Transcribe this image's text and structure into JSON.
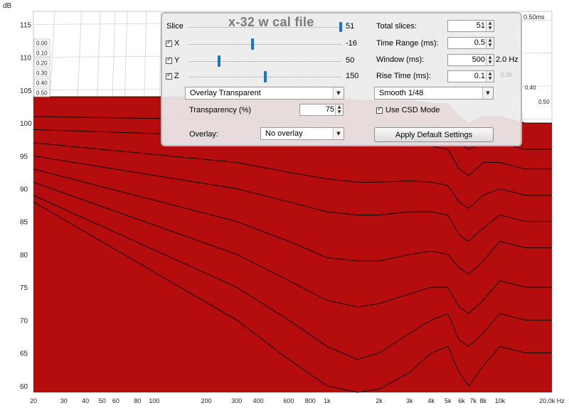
{
  "chart_data": {
    "type": "area",
    "title": "x-32 w cal file",
    "ylabel": "dB",
    "xlabel": "",
    "x_scale": "log",
    "xlim": [
      20,
      20000
    ],
    "ylim": [
      59,
      117
    ],
    "y_ticks": [
      60,
      65,
      70,
      75,
      80,
      85,
      90,
      95,
      100,
      105,
      110,
      115
    ],
    "x_ticks": [
      20,
      30,
      40,
      50,
      60,
      80,
      100,
      200,
      300,
      400,
      600,
      800,
      1000,
      2000,
      3000,
      4000,
      5000,
      6000,
      7000,
      8000,
      10000,
      20000
    ],
    "x_tick_labels": [
      "20",
      "30",
      "40",
      "50",
      "60",
      "80",
      "100",
      "200",
      "300",
      "400",
      "600",
      "800",
      "1k",
      "2k",
      "3k",
      "4k",
      "5k",
      "6k",
      "7k",
      "8k",
      "10k",
      "20.0k Hz"
    ],
    "time_scale_labels": [
      "0.00",
      "0.10",
      "0.20",
      "0.30",
      "0.40",
      "0.50"
    ],
    "depth_labels_right": [
      "0.50ms",
      "0.40",
      "0.50"
    ],
    "fill_color": "#b50d0d",
    "line_color": "#000000",
    "series": [
      {
        "x": [
          20,
          300,
          600,
          1000,
          1500,
          2000,
          3000,
          4000,
          5000,
          5800,
          6600,
          8000,
          10000,
          14000,
          20000
        ],
        "y": [
          104,
          104,
          104,
          104,
          103.5,
          103.5,
          103.5,
          103,
          103,
          101,
          100,
          101,
          101,
          100,
          100
        ]
      },
      {
        "x": [
          20,
          300,
          600,
          1000,
          1500,
          2000,
          3000,
          4000,
          5000,
          5800,
          6600,
          8000,
          10000,
          14000,
          20000
        ],
        "y": [
          101,
          100.5,
          100.5,
          100,
          99.8,
          99.5,
          99.8,
          99.5,
          99,
          97,
          96,
          97,
          97,
          96,
          96
        ]
      },
      {
        "x": [
          20,
          300,
          600,
          1000,
          1500,
          2000,
          3000,
          4000,
          5000,
          5800,
          6600,
          8000,
          10000,
          14000,
          20000
        ],
        "y": [
          99,
          98,
          97.5,
          97,
          96.8,
          96.5,
          96.8,
          96.5,
          96,
          93,
          92,
          94,
          94,
          93,
          93
        ]
      },
      {
        "x": [
          20,
          300,
          600,
          1000,
          1500,
          2000,
          3000,
          4000,
          5000,
          5800,
          6600,
          8000,
          10000,
          14000,
          20000
        ],
        "y": [
          97,
          94,
          92.5,
          91.5,
          91,
          91,
          91.2,
          91,
          90.5,
          88,
          87,
          89,
          90,
          89,
          89
        ]
      },
      {
        "x": [
          20,
          300,
          600,
          1000,
          1500,
          2000,
          3000,
          4000,
          5000,
          5800,
          6600,
          8000,
          10000,
          14000,
          20000
        ],
        "y": [
          95,
          90,
          88,
          86.5,
          86,
          86,
          86.5,
          86.5,
          86,
          83,
          82,
          84,
          86,
          85,
          85
        ]
      },
      {
        "x": [
          20,
          300,
          600,
          1000,
          1500,
          2000,
          3000,
          4000,
          5000,
          5800,
          6600,
          8000,
          10000,
          14000,
          20000
        ],
        "y": [
          93,
          85,
          82,
          79.5,
          79,
          79,
          80,
          80.5,
          80,
          78,
          77,
          79,
          82,
          81,
          81
        ]
      },
      {
        "x": [
          20,
          300,
          600,
          1000,
          1500,
          2000,
          3000,
          4000,
          5000,
          5800,
          6600,
          8000,
          10000,
          14000,
          20000
        ],
        "y": [
          91,
          80,
          76,
          73,
          72,
          72.5,
          74,
          75,
          75,
          72,
          71,
          73,
          76,
          75,
          75
        ]
      },
      {
        "x": [
          20,
          300,
          600,
          1000,
          1500,
          2000,
          3000,
          4000,
          5000,
          5800,
          6600,
          8000,
          10000,
          14000,
          20000
        ],
        "y": [
          89,
          75,
          70,
          66,
          64,
          65,
          68,
          70,
          71,
          67,
          66,
          68,
          71,
          70,
          70
        ]
      },
      {
        "x": [
          20,
          300,
          600,
          1000,
          1500,
          2000,
          3000,
          4000,
          5000,
          5800,
          6600,
          8000,
          10000,
          14000,
          20000
        ],
        "y": [
          88,
          70,
          64,
          60,
          59,
          59.5,
          62,
          65,
          66,
          62,
          60,
          63,
          66,
          65,
          65
        ]
      }
    ]
  },
  "controls": {
    "title": "x-32 w cal file",
    "slice_label": "Slice",
    "slice_value": "51",
    "x_label": "X",
    "x_value": "-16",
    "y_label": "Y",
    "y_value": "50",
    "z_label": "Z",
    "z_value": "150",
    "total_slices_label": "Total slices:",
    "total_slices_value": "51",
    "time_range_label": "Time Range (ms):",
    "time_range_value": "0.5",
    "window_label": "Window (ms):",
    "window_value": "500",
    "window_hz": "2.0 Hz",
    "rise_time_label": "Rise Time (ms):",
    "rise_time_value": "0.1",
    "rise_time_faded": "0.30",
    "overlay_mode": "Overlay Transparent",
    "smoothing": "Smooth 1/48",
    "transparency_label": "Transparency (%)",
    "transparency_value": "75",
    "use_csd_label": "Use CSD Mode",
    "overlay_label": "Overlay:",
    "overlay_value": "No overlay",
    "apply_label": "Apply Default Settings"
  }
}
